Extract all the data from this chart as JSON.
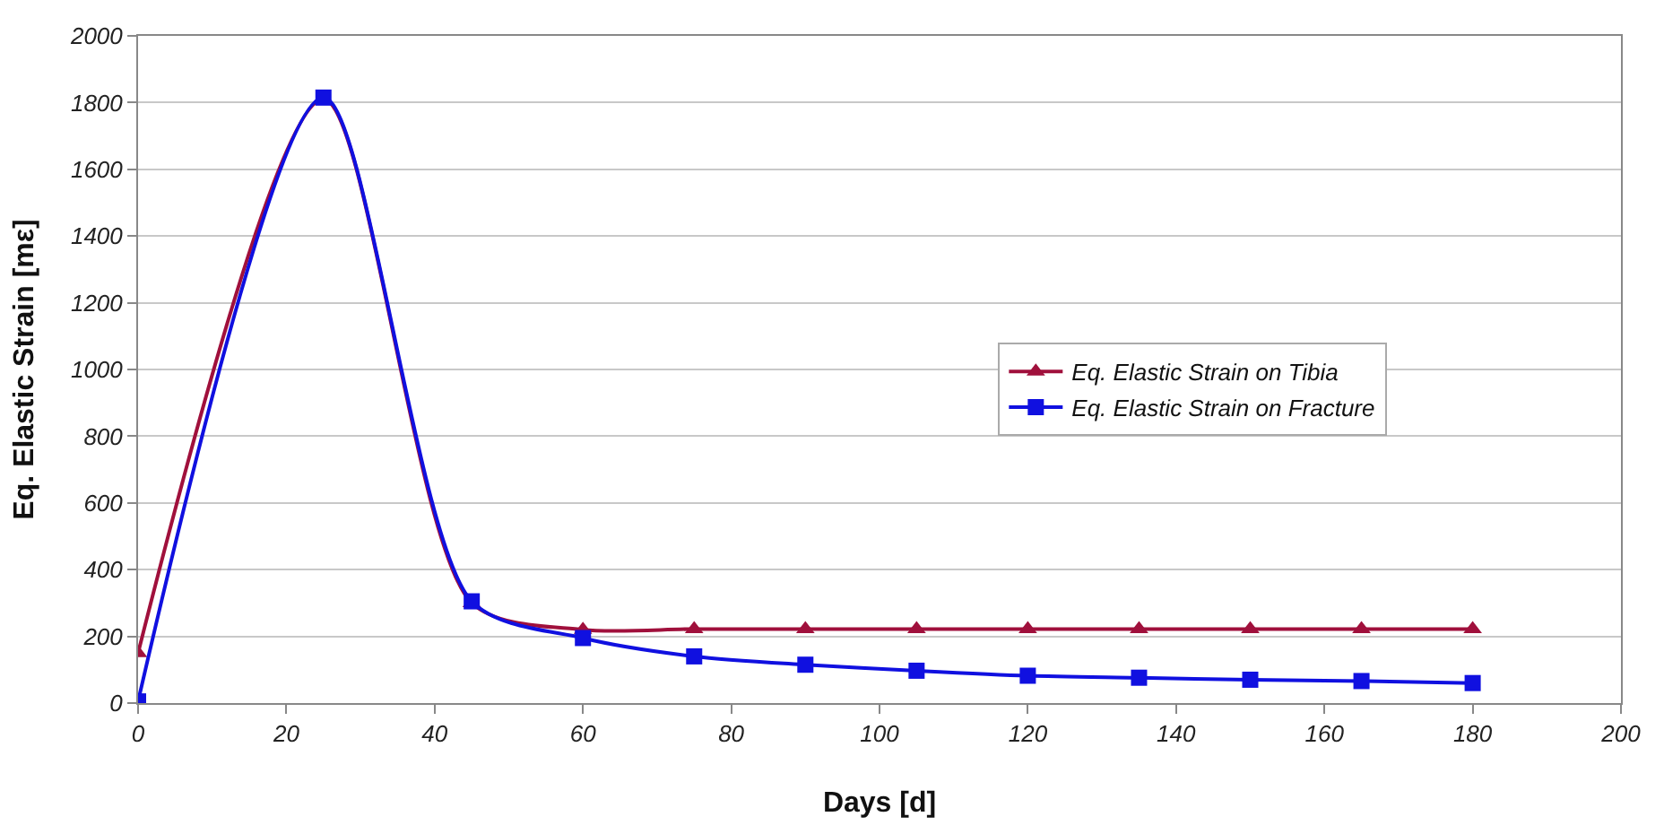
{
  "chart_data": {
    "type": "line",
    "xlabel": "Days [d]",
    "ylabel": "Eq. Elastic Strain [mε]",
    "x": [
      0,
      25,
      45,
      60,
      75,
      90,
      105,
      120,
      135,
      150,
      165,
      180
    ],
    "series": [
      {
        "name": "Eq. Elastic Strain on Tibia",
        "color": "#a0103c",
        "marker": "triangle",
        "values": [
          150,
          1810,
          300,
          220,
          222,
          222,
          222,
          222,
          222,
          222,
          222,
          222
        ]
      },
      {
        "name": "Eq. Elastic Strain on Fracture",
        "color": "#1010e0",
        "marker": "square",
        "values": [
          5,
          1815,
          305,
          195,
          140,
          115,
          97,
          82,
          76,
          70,
          66,
          60
        ]
      }
    ],
    "xlim": [
      0,
      200
    ],
    "xticks": [
      0,
      20,
      40,
      60,
      80,
      100,
      120,
      140,
      160,
      180,
      200
    ],
    "ylim": [
      0,
      2000
    ],
    "yticks": [
      0,
      200,
      400,
      600,
      800,
      1000,
      1200,
      1400,
      1600,
      1800,
      2000
    ],
    "grid": "y",
    "legend": "right",
    "line_style": "solid"
  }
}
